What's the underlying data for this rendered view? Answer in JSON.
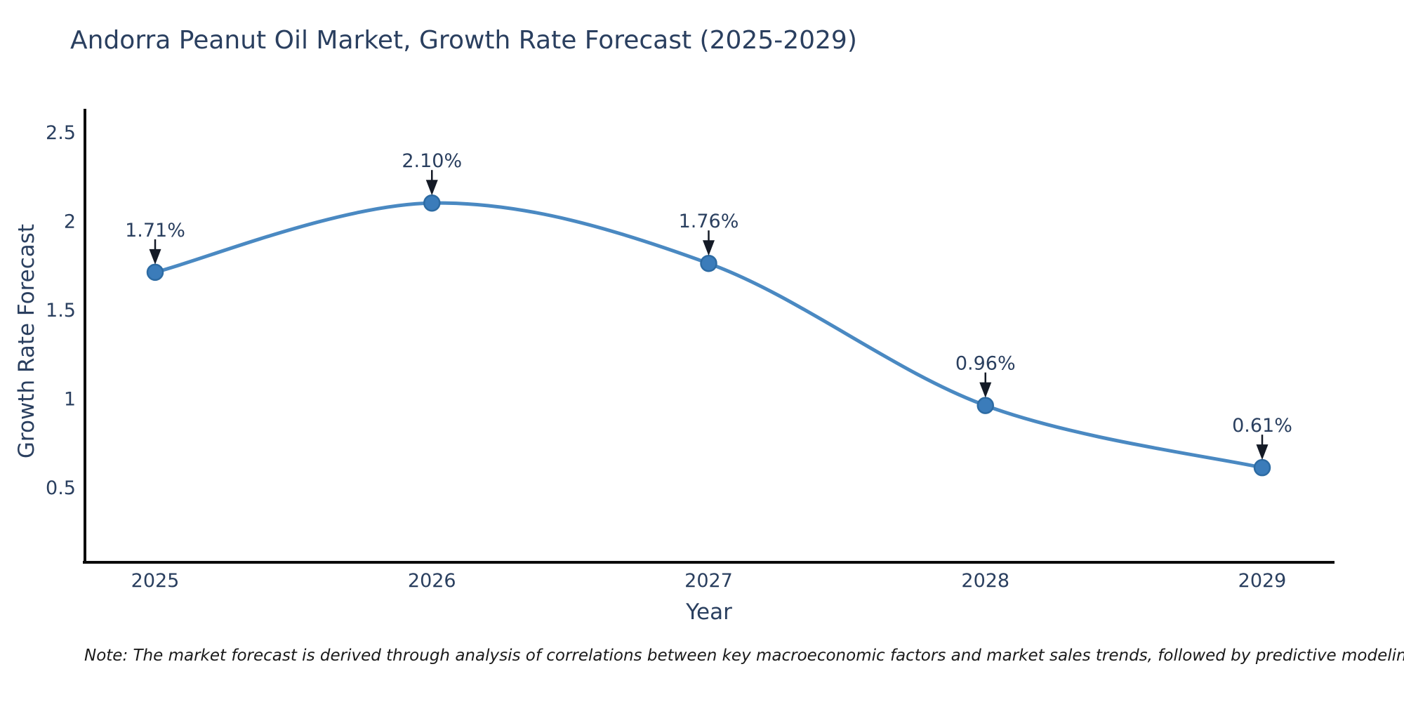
{
  "chart_data": {
    "type": "line",
    "line_shape": "spline",
    "title": "Andorra Peanut Oil Market, Growth Rate Forecast (2025-2029)",
    "xlabel": "Year",
    "ylabel": "Growth Rate Forecast",
    "categories": [
      2025,
      2026,
      2027,
      2028,
      2029
    ],
    "values": [
      1.71,
      2.1,
      1.76,
      0.96,
      0.61
    ],
    "point_labels": [
      "1.71%",
      "2.10%",
      "1.76%",
      "0.96%",
      "0.61%"
    ],
    "y_ticks": [
      2.5,
      2,
      1.5,
      1,
      0.5
    ],
    "y_tick_labels": [
      "2.5",
      "2",
      "1.5",
      "1",
      "0.5"
    ],
    "x_tick_labels": [
      "2025",
      "2026",
      "2027",
      "2028",
      "2029"
    ],
    "ylim": [
      0.08,
      2.63
    ],
    "grid": false,
    "legend": null,
    "annotation_style": "down-arrow",
    "note": "Note: The market forecast is derived through analysis of correlations between key macroeconomic factors and market sales trends, followed by predictive modeling to project future sales",
    "colors": {
      "line": "#4a89c2",
      "marker": "#3b7cba",
      "marker_edge": "#2d6ba3",
      "text": "#2a3f5f",
      "axis": "#0b0b0b",
      "arrow": "#141a26",
      "note_text": "#1a1a1a"
    }
  }
}
